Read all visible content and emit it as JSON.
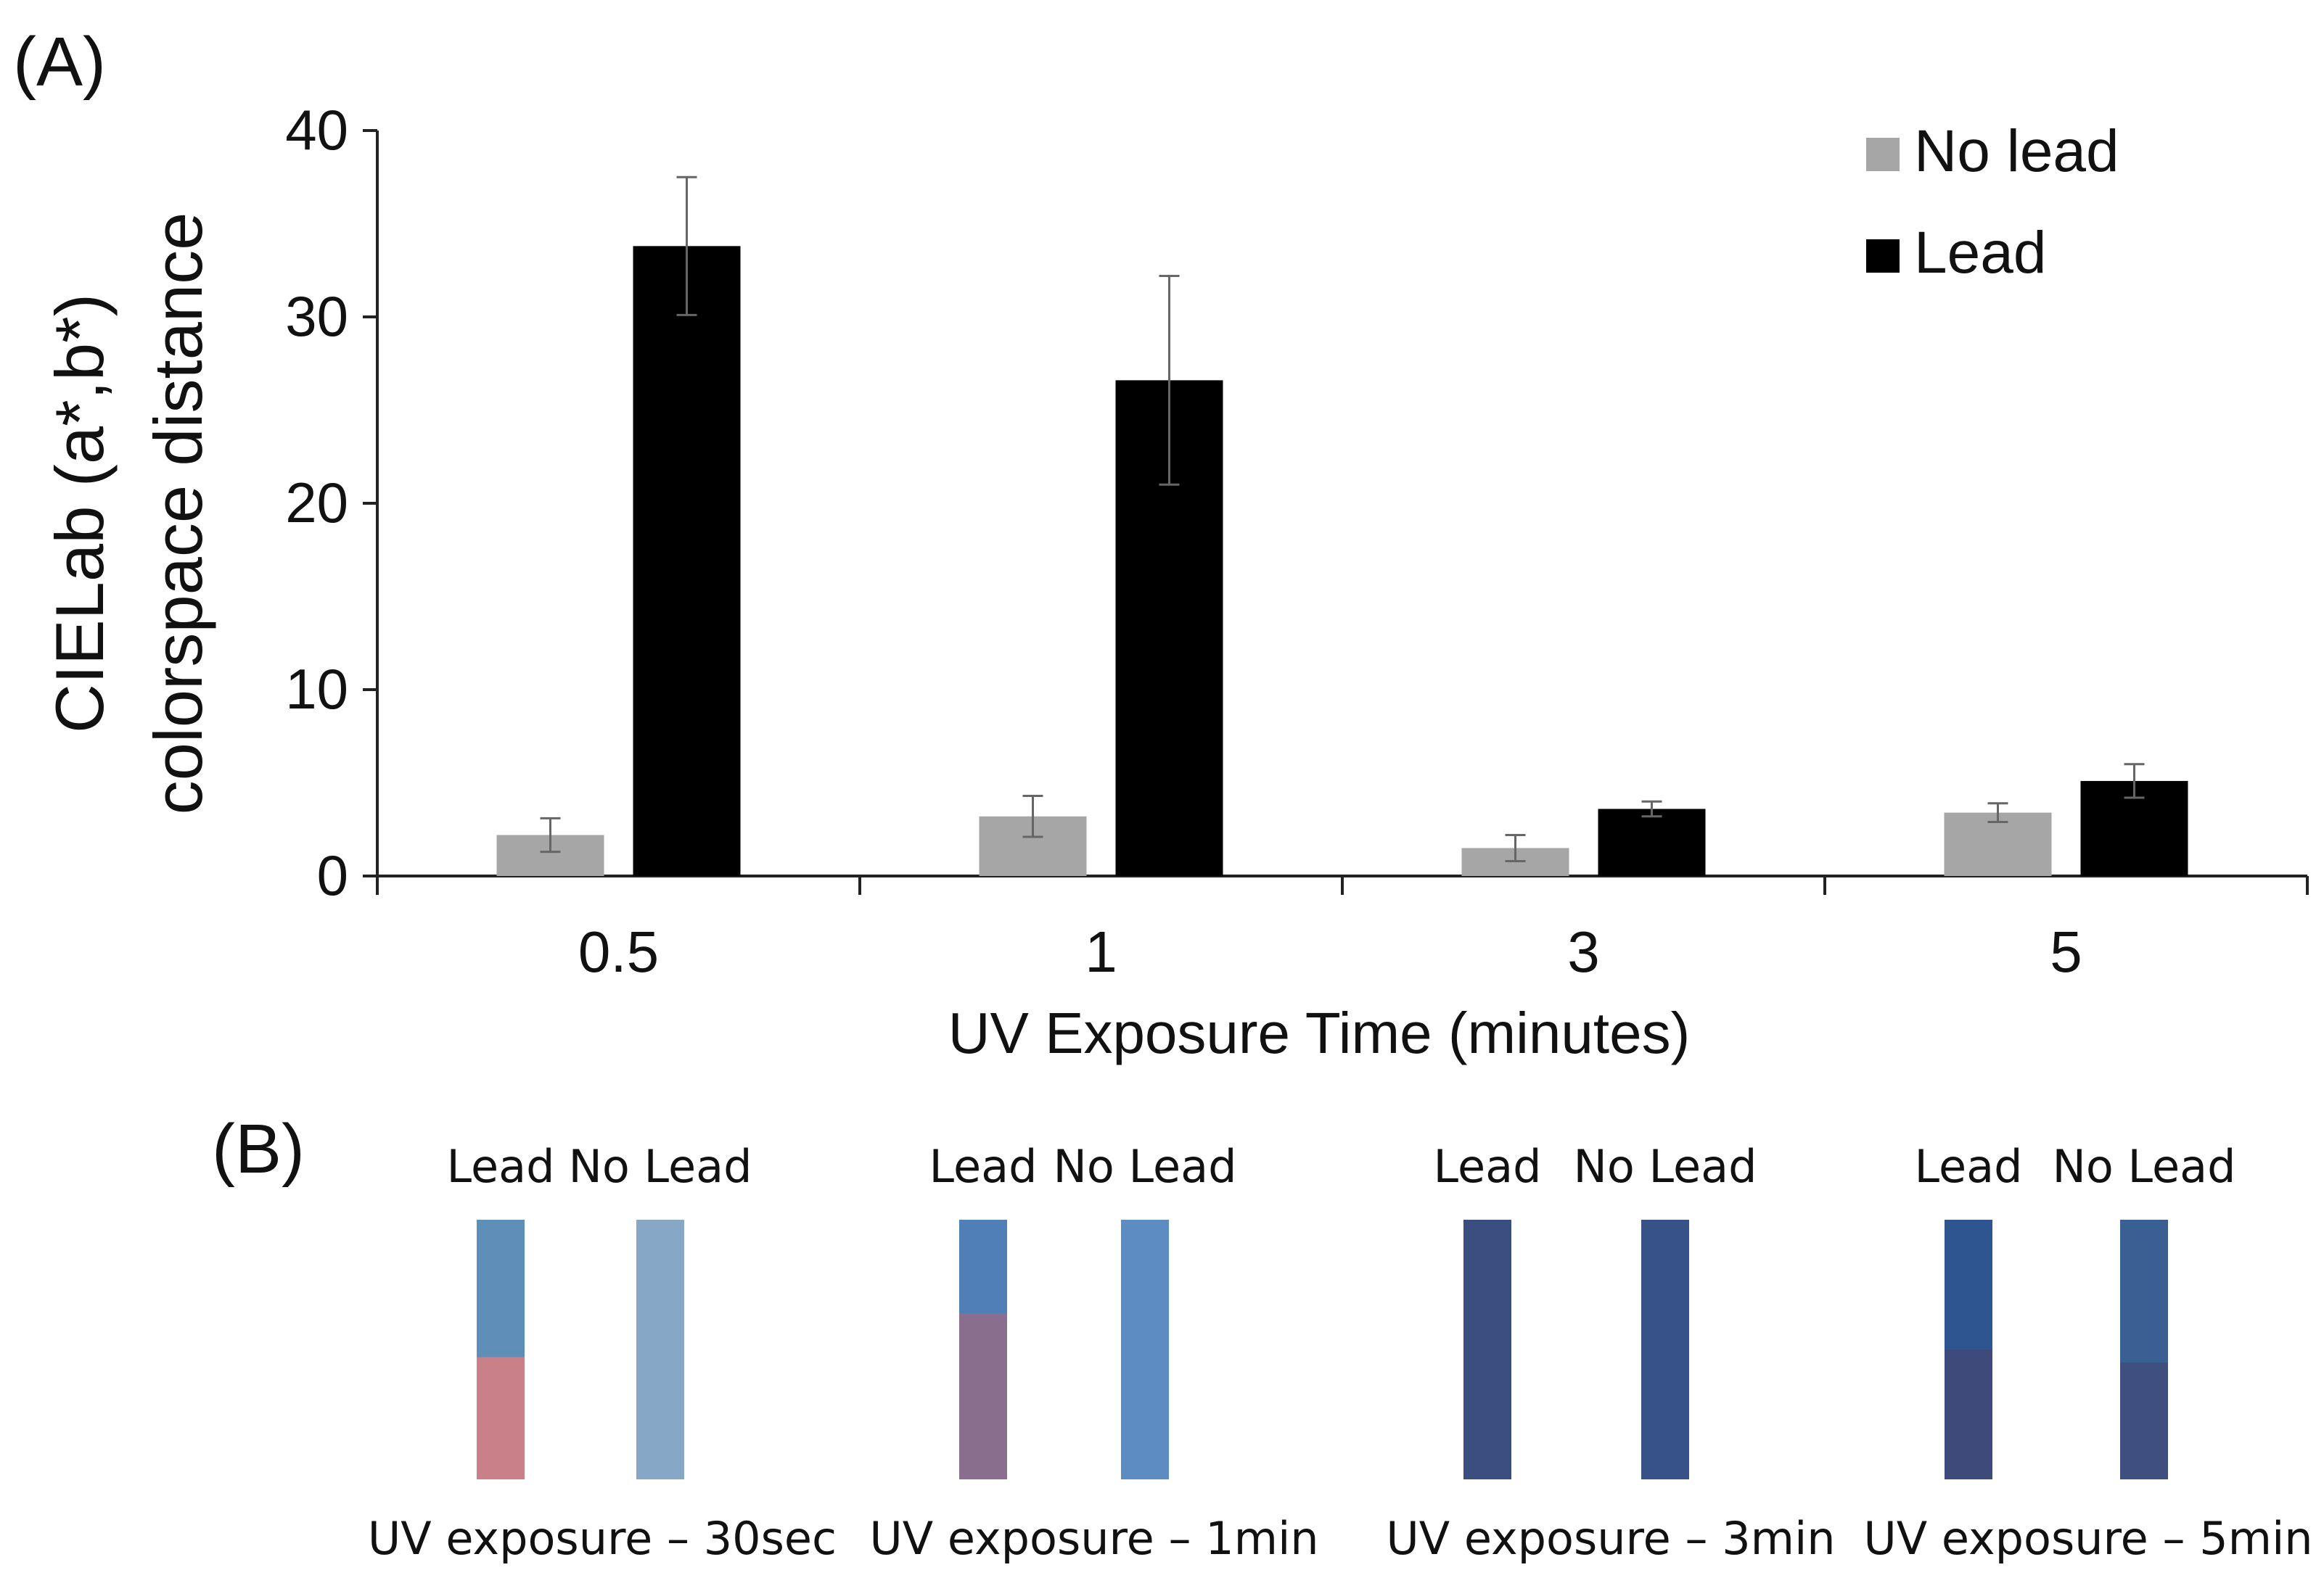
{
  "panel_a_label": "(A)",
  "panel_b_label": "(B)",
  "chart_data": {
    "type": "bar",
    "title": "",
    "xlabel": "UV Exposure Time (minutes)",
    "ylabel_line1": "CIELab (a*,b*)",
    "ylabel_line2": "colorspace distance",
    "categories": [
      "0.5",
      "1",
      "3",
      "5"
    ],
    "ylim": [
      0,
      40
    ],
    "yticks": [
      0,
      10,
      20,
      30,
      40
    ],
    "grid": false,
    "legend_position": "top-right",
    "series": [
      {
        "name": "No lead",
        "color": "#a6a6a6",
        "values": [
          2.2,
          3.2,
          1.5,
          3.4
        ],
        "errors": [
          0.9,
          1.1,
          0.7,
          0.5
        ]
      },
      {
        "name": "Lead",
        "color": "#000000",
        "values": [
          33.8,
          26.6,
          3.6,
          5.1
        ],
        "errors": [
          3.7,
          5.6,
          0.4,
          0.9
        ]
      }
    ]
  },
  "panel_b": {
    "groups": [
      {
        "lead_label": "Lead",
        "no_lead_label": "No Lead",
        "caption": "UV exposure – 30sec",
        "lead_strip": {
          "top": "#5f8fb8",
          "bottom": "#c98088",
          "split": 0.53
        },
        "no_lead_strip": {
          "top": "#86a8c6",
          "bottom": "#86a8c6",
          "split": 1
        }
      },
      {
        "lead_label": "Lead",
        "no_lead_label": "No Lead",
        "caption": "UV exposure – 1min",
        "lead_strip": {
          "top": "#4f7fb6",
          "bottom": "#8a6e8e",
          "split": 0.36
        },
        "no_lead_strip": {
          "top": "#5d8cc2",
          "bottom": "#5d8cc2",
          "split": 1
        }
      },
      {
        "lead_label": "Lead",
        "no_lead_label": "No Lead",
        "caption": "UV exposure – 3min",
        "lead_strip": {
          "top": "#3a4f80",
          "bottom": "#3a4f80",
          "split": 1
        },
        "no_lead_strip": {
          "top": "#365286",
          "bottom": "#365286",
          "split": 1
        }
      },
      {
        "lead_label": "Lead",
        "no_lead_label": "No Lead",
        "caption": "UV exposure – 5min",
        "lead_strip": {
          "top": "#2f5590",
          "bottom": "#3d4a7a",
          "split": 0.5
        },
        "no_lead_strip": {
          "top": "#3a5f92",
          "bottom": "#3f4f80",
          "split": 0.55
        }
      }
    ]
  }
}
